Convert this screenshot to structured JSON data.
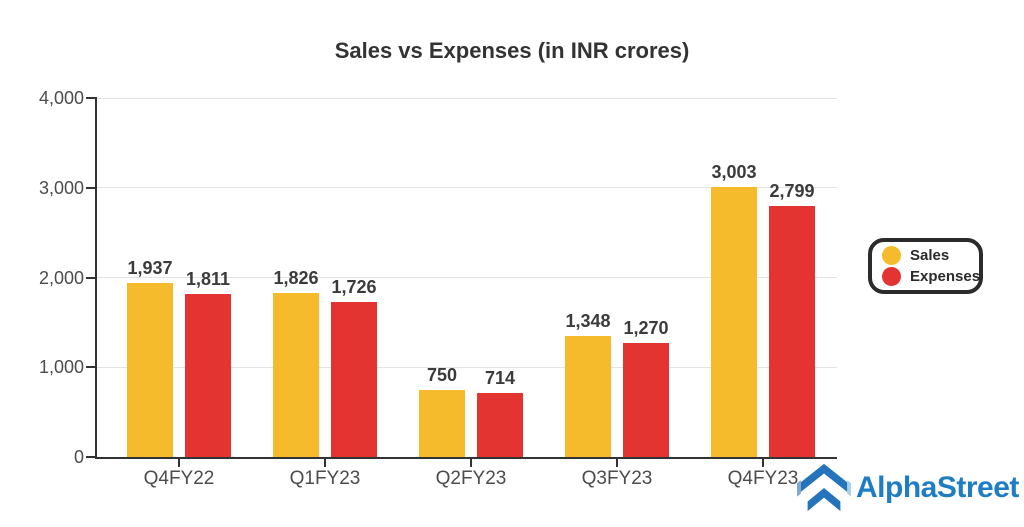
{
  "title": "Sales vs Expenses (in INR crores)",
  "chart_data": {
    "type": "bar",
    "title": "Sales vs Expenses (in INR crores)",
    "categories": [
      "Q4FY22",
      "Q1FY23",
      "Q2FY23",
      "Q3FY23",
      "Q4FY23"
    ],
    "series": [
      {
        "name": "Sales",
        "color": "#F6BB2D",
        "values": [
          1937,
          1826,
          750,
          1348,
          3003
        ],
        "value_labels": [
          "1,937",
          "1,826",
          "750",
          "1,348",
          "3,003"
        ]
      },
      {
        "name": "Expenses",
        "color": "#E33432",
        "values": [
          1811,
          1726,
          714,
          1270,
          2799
        ],
        "value_labels": [
          "1,811",
          "1,726",
          "714",
          "1,270",
          "2,799"
        ]
      }
    ],
    "xlabel": "",
    "ylabel": "",
    "ylim": [
      0,
      4000
    ],
    "yticks": [
      0,
      1000,
      2000,
      3000,
      4000
    ],
    "ytick_labels": [
      "0",
      "1,000",
      "2,000",
      "3,000",
      "4,000"
    ],
    "grid": true,
    "legend_position": "middle-right"
  },
  "legend": {
    "items": [
      {
        "label": "Sales",
        "color": "#F6BB2D"
      },
      {
        "label": "Expenses",
        "color": "#E33432"
      }
    ]
  },
  "branding": {
    "name": "AlphaStreet",
    "icon": "alphastreet-chevron-icon",
    "text_color": "#1F7EC3",
    "icon_colors": {
      "main": "#2473BB",
      "left_facet": "#7FA9D0",
      "right_facet": "#A9D0EC"
    }
  },
  "style": {
    "background": "#FFFFFF",
    "bar_label_color": "#3B3B3B",
    "axis_color": "#333333",
    "tick_label_color": "#4C4C4C",
    "gridline_color": "#E3E3E3",
    "legend_border_color": "#2B2B2B"
  }
}
